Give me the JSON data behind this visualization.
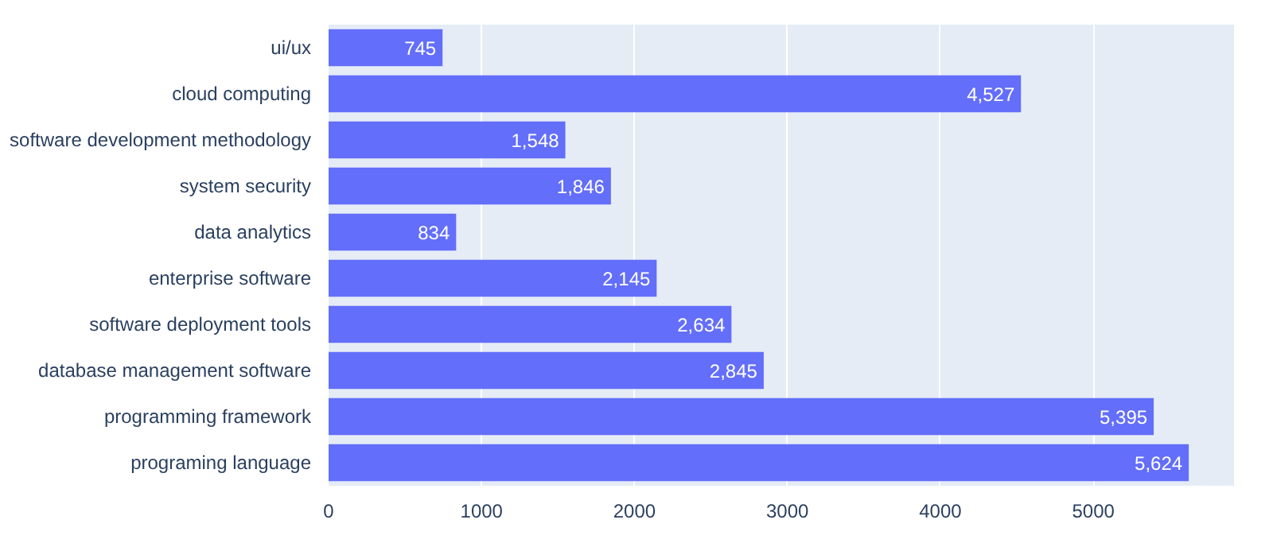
{
  "chart_data": {
    "type": "bar",
    "orientation": "horizontal",
    "categories": [
      "ui/ux",
      "cloud computing",
      "software development methodology",
      "system security",
      "data analytics",
      "enterprise software",
      "software deployment tools",
      "database management software",
      "programming framework",
      "programing language"
    ],
    "values": [
      745,
      4527,
      1548,
      1846,
      834,
      2145,
      2634,
      2845,
      5395,
      5624
    ],
    "color": "#636efa",
    "xlim": [
      0,
      5920
    ],
    "xticks": [
      0,
      1000,
      2000,
      3000,
      4000,
      5000
    ],
    "value_labels": [
      "745",
      "4,527",
      "1,548",
      "1,846",
      "834",
      "2,145",
      "2,634",
      "2,845",
      "5,395",
      "5,624"
    ],
    "grid": "x"
  }
}
